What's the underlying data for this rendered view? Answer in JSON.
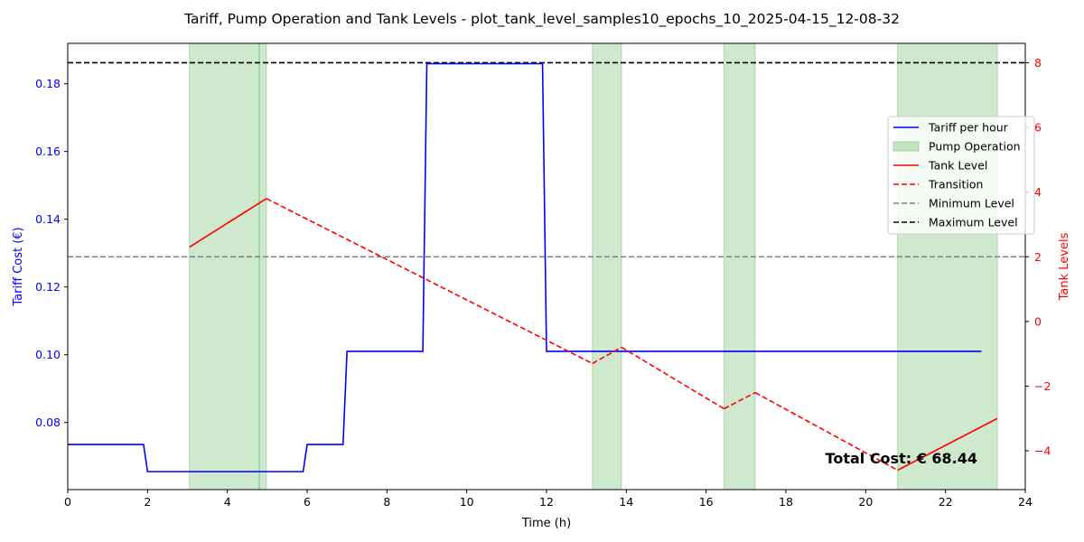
{
  "chart_data": {
    "type": "line",
    "title": "Tariff, Pump Operation and Tank Levels - plot_tank_level_samples10_epochs_10_2025-04-15_12-08-32",
    "xlabel": "Time (h)",
    "ylabel_left": "Tariff Cost (€)",
    "ylabel_right": "Tank Levels",
    "xlim": [
      0,
      24
    ],
    "ylim_left": [
      0.0602,
      0.1919
    ],
    "ylim_right": [
      -5.2,
      8.6
    ],
    "x_ticks": [
      0,
      2,
      4,
      6,
      8,
      10,
      12,
      14,
      16,
      18,
      20,
      22,
      24
    ],
    "y_left_ticks": [
      0.08,
      0.1,
      0.12,
      0.14,
      0.16,
      0.18
    ],
    "y_left_tick_labels": [
      "0.08",
      "0.10",
      "0.12",
      "0.14",
      "0.16",
      "0.18"
    ],
    "y_right_ticks": [
      -4,
      -2,
      0,
      2,
      4,
      6,
      8
    ],
    "y_right_tick_labels": [
      "−4",
      "−2",
      "0",
      "2",
      "4",
      "6",
      "8"
    ],
    "grid": false,
    "legend_position": "right",
    "legend": [
      {
        "label": "Tariff per hour",
        "style": "line",
        "color": "#0000ff"
      },
      {
        "label": "Pump Operation",
        "style": "patch",
        "color": "#2ca02c"
      },
      {
        "label": "Tank Level",
        "style": "line",
        "color": "#ff0000"
      },
      {
        "label": "Transition",
        "style": "dashed",
        "color": "#ff0000"
      },
      {
        "label": "Minimum Level",
        "style": "dashed",
        "color": "#808080"
      },
      {
        "label": "Maximum Level",
        "style": "dashed",
        "color": "#000000"
      }
    ],
    "tariff": {
      "color": "#0000ff",
      "x": [
        0,
        1.9,
        2.0,
        5.9,
        6.0,
        6.9,
        7.0,
        8.9,
        9.0,
        11.9,
        12.0,
        22.9
      ],
      "y": [
        0.0735,
        0.0735,
        0.0655,
        0.0655,
        0.0735,
        0.0735,
        0.101,
        0.101,
        0.1859,
        0.1859,
        0.101,
        0.101
      ]
    },
    "pump_operation": {
      "color": "#2ca02c",
      "intervals": [
        [
          3.05,
          4.8
        ],
        [
          4.8,
          4.98
        ],
        [
          13.15,
          13.88
        ],
        [
          16.45,
          17.23
        ],
        [
          20.8,
          23.3
        ]
      ]
    },
    "tank_level_segments": [
      {
        "x": [
          3.05,
          4.98
        ],
        "y": [
          2.3,
          3.8
        ]
      },
      {
        "x": [
          20.8,
          23.3
        ],
        "y": [
          -4.6,
          -3.0
        ]
      }
    ],
    "transition_segments": [
      {
        "x": [
          4.98,
          13.15
        ],
        "y": [
          3.8,
          -1.3
        ]
      },
      {
        "x": [
          13.15,
          13.88
        ],
        "y": [
          -1.3,
          -0.8
        ]
      },
      {
        "x": [
          13.88,
          16.45
        ],
        "y": [
          -0.8,
          -2.7
        ]
      },
      {
        "x": [
          16.45,
          17.23
        ],
        "y": [
          -2.7,
          -2.2
        ]
      },
      {
        "x": [
          17.23,
          20.8
        ],
        "y": [
          -2.2,
          -4.6
        ]
      }
    ],
    "minimum_level": 2,
    "maximum_level": 8,
    "annotation": "Total Cost: € 68.44",
    "colors": {
      "tariff": "#0000ff",
      "tank": "#ff0000",
      "pump": "#2ca02c",
      "min_level": "#808080",
      "max_level": "#000000"
    }
  }
}
